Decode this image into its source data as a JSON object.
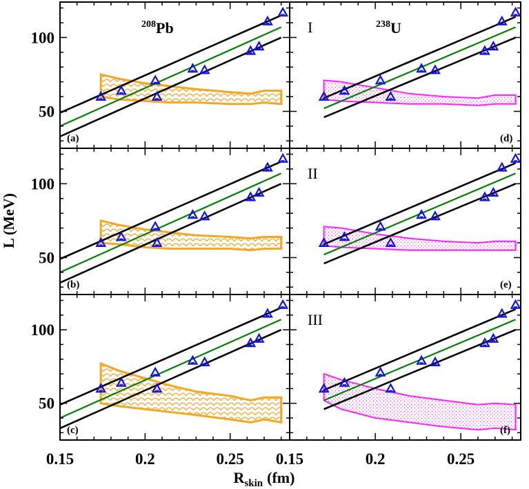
{
  "chart_data": {
    "type": "scatter",
    "layout": "3 rows x 2 columns, shared axes",
    "xlabel": "R",
    "xlabel_sub": "skin",
    "xlabel_unit": "(fm)",
    "ylabel": "L  (MeV)",
    "x_ticks": [
      "0.15",
      "0.2",
      "0.25",
      "0.15",
      "0.2",
      "0.25"
    ],
    "y_ticks": [
      "100",
      "50"
    ],
    "columns": [
      {
        "mass_number": "208",
        "element": "Pb",
        "xlim": [
          0.15,
          0.285
        ],
        "band_color": "#f5a623"
      },
      {
        "mass_number": "238",
        "element": "U",
        "xlim": [
          0.15,
          0.285
        ],
        "band_color": "#ff20ff"
      }
    ],
    "ylim": [
      25,
      124
    ],
    "scatter_points_left": {
      "x": [
        0.174,
        0.186,
        0.206,
        0.207,
        0.228,
        0.235,
        0.262,
        0.267,
        0.272,
        0.281
      ],
      "y": [
        60,
        64,
        71,
        60,
        79,
        78,
        91,
        94,
        111,
        117
      ]
    },
    "scatter_points_right": {
      "x": [
        0.17,
        0.182,
        0.203,
        0.209,
        0.227,
        0.235,
        0.264,
        0.269,
        0.274,
        0.282
      ],
      "y": [
        60,
        64,
        71,
        60,
        79,
        78,
        91,
        94,
        111,
        117
      ]
    },
    "fit_lines_left": [
      {
        "name": "upper",
        "color": "#000000",
        "x": [
          0.15,
          0.28
        ],
        "y": [
          49,
          115
        ]
      },
      {
        "name": "fit",
        "color": "#008000",
        "x": [
          0.15,
          0.28
        ],
        "y": [
          40,
          107
        ]
      },
      {
        "name": "lower",
        "color": "#000000",
        "x": [
          0.15,
          0.28
        ],
        "y": [
          33,
          100
        ]
      }
    ],
    "fit_lines_right": [
      {
        "name": "upper",
        "color": "#000000",
        "x": [
          0.17,
          0.282
        ],
        "y": [
          59,
          114
        ]
      },
      {
        "name": "fit",
        "color": "#008000",
        "x": [
          0.17,
          0.282
        ],
        "y": [
          52,
          107
        ]
      },
      {
        "name": "lower",
        "color": "#000000",
        "x": [
          0.17,
          0.282
        ],
        "y": [
          46,
          100
        ]
      }
    ],
    "panels": [
      {
        "label": "(a)",
        "roman": "",
        "col": 0,
        "row": 0,
        "band": {
          "x": [
            0.174,
            0.185,
            0.2,
            0.215,
            0.23,
            0.25,
            0.262,
            0.27,
            0.28
          ],
          "upper": [
            75,
            72,
            69,
            67,
            65,
            63,
            62,
            64,
            64
          ],
          "lower": [
            60,
            58,
            57,
            56,
            56,
            55,
            55,
            56,
            55
          ]
        }
      },
      {
        "label": "(b)",
        "roman": "",
        "col": 0,
        "row": 1,
        "band": {
          "x": [
            0.174,
            0.185,
            0.2,
            0.215,
            0.23,
            0.25,
            0.262,
            0.27,
            0.28
          ],
          "upper": [
            75,
            72,
            69,
            67,
            65,
            64,
            63,
            64,
            64
          ],
          "lower": [
            60,
            59,
            57,
            56,
            56,
            56,
            55,
            56,
            56
          ]
        }
      },
      {
        "label": "(c)",
        "roman": "",
        "col": 0,
        "row": 2,
        "band": {
          "x": [
            0.174,
            0.185,
            0.2,
            0.215,
            0.23,
            0.25,
            0.262,
            0.27,
            0.28
          ],
          "upper": [
            77,
            72,
            67,
            62,
            58,
            55,
            52,
            54,
            54
          ],
          "lower": [
            50,
            48,
            46,
            44,
            42,
            39,
            37,
            39,
            37
          ]
        }
      },
      {
        "label": "(d)",
        "roman": "I",
        "col": 1,
        "row": 0,
        "band": {
          "x": [
            0.17,
            0.18,
            0.2,
            0.22,
            0.24,
            0.26,
            0.27,
            0.282
          ],
          "upper": [
            71,
            70,
            66,
            62,
            60,
            59,
            61,
            61
          ],
          "lower": [
            58,
            57,
            56,
            55,
            55,
            54,
            55,
            55
          ]
        }
      },
      {
        "label": "(e)",
        "roman": "II",
        "col": 1,
        "row": 1,
        "band": {
          "x": [
            0.17,
            0.18,
            0.2,
            0.22,
            0.24,
            0.26,
            0.27,
            0.282
          ],
          "upper": [
            71,
            70,
            66,
            63,
            61,
            60,
            61,
            61
          ],
          "lower": [
            58,
            57,
            56,
            55,
            55,
            55,
            55,
            55
          ]
        }
      },
      {
        "label": "(f)",
        "roman": "III",
        "col": 1,
        "row": 2,
        "band": {
          "x": [
            0.17,
            0.18,
            0.2,
            0.22,
            0.24,
            0.26,
            0.27,
            0.282
          ],
          "upper": [
            70,
            66,
            60,
            55,
            52,
            49,
            50,
            49
          ],
          "lower": [
            52,
            46,
            40,
            37,
            34,
            32,
            33,
            32
          ]
        }
      }
    ]
  }
}
